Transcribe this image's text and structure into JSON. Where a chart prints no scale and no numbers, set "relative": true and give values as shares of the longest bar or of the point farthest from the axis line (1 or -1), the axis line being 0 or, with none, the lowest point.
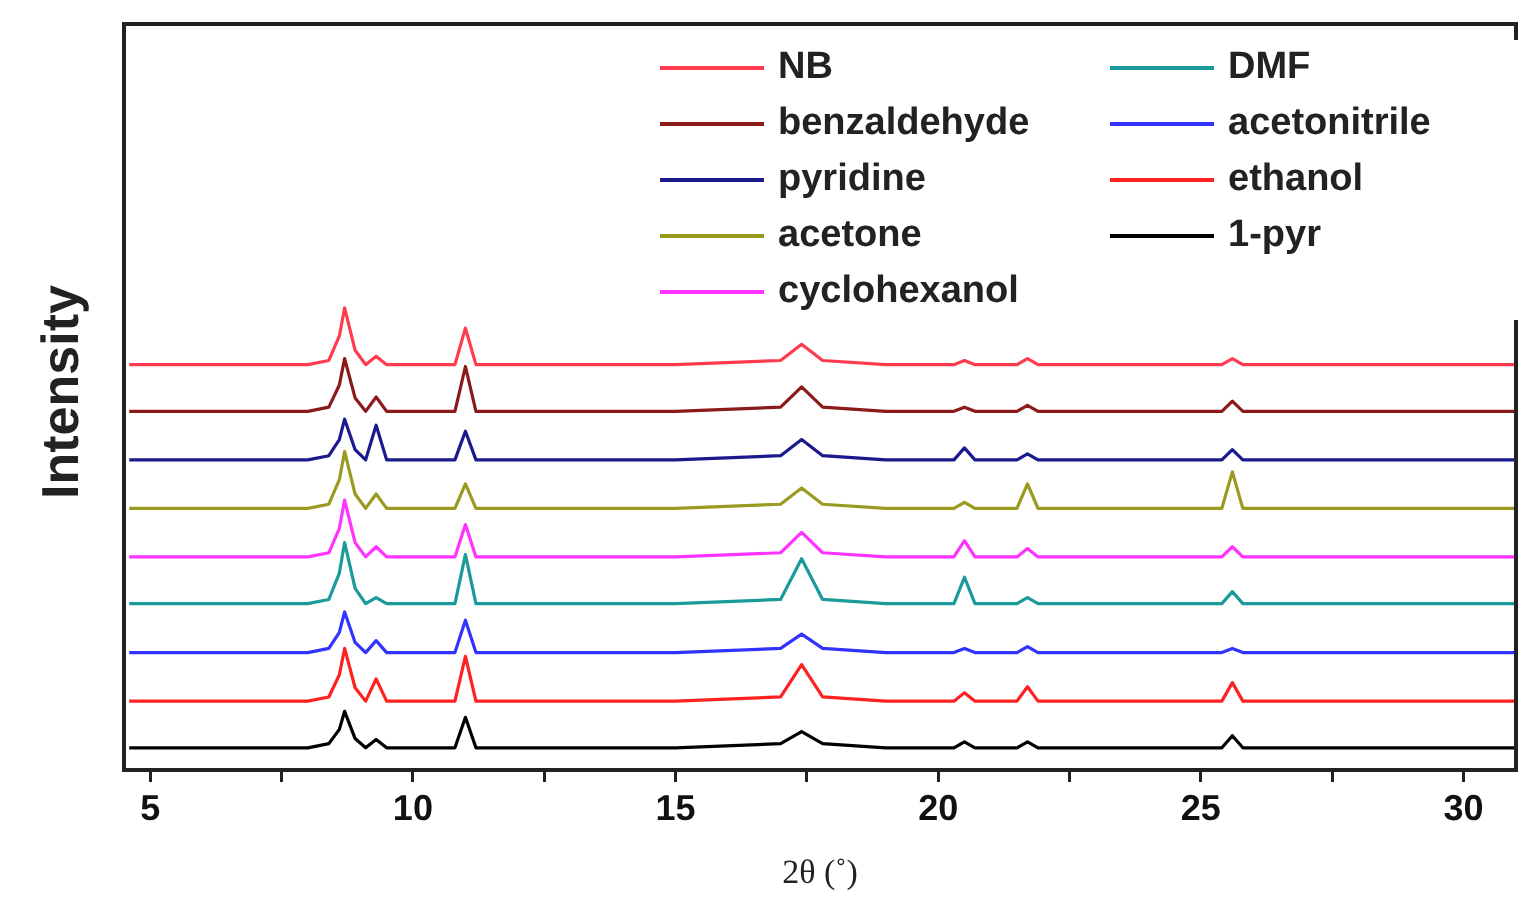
{
  "chart_data": {
    "type": "line",
    "relative": true,
    "xlabel": "2θ (˚)",
    "ylabel": "Intensity",
    "xlim": [
      4.5,
      31
    ],
    "xticks": [
      5,
      {
        "value": 7.5,
        "label": null
      },
      10,
      {
        "value": 12.5,
        "label": null
      },
      15,
      {
        "value": 17.5,
        "label": null
      },
      20,
      {
        "value": 22.5,
        "label": null
      },
      25,
      {
        "value": 27.5,
        "label": null
      },
      30
    ],
    "grid": false,
    "legend": "top right",
    "marker": "none",
    "line_style": "solid",
    "x": [
      4.6,
      6,
      7,
      8,
      8.4,
      8.6,
      8.7,
      8.9,
      9.1,
      9.3,
      9.5,
      10.8,
      11.0,
      11.2,
      13,
      15,
      17.0,
      17.4,
      17.8,
      19,
      20.3,
      20.5,
      20.7,
      21.5,
      21.7,
      21.9,
      23,
      25.4,
      25.6,
      25.8,
      28,
      31
    ],
    "series": [
      {
        "name": "NB",
        "color": "#ff3b4e",
        "values": [
          0.877,
          0.877,
          0.877,
          0.877,
          0.886,
          0.939,
          1.0,
          0.908,
          0.877,
          0.895,
          0.877,
          0.877,
          0.956,
          0.877,
          0.877,
          0.877,
          0.886,
          0.921,
          0.886,
          0.877,
          0.877,
          0.886,
          0.877,
          0.877,
          0.89,
          0.877,
          0.877,
          0.877,
          0.89,
          0.877,
          0.877,
          0.877
        ]
      },
      {
        "name": "benzaldehyde",
        "color": "#8b1a1a",
        "values": [
          0.776,
          0.776,
          0.776,
          0.776,
          0.785,
          0.833,
          0.89,
          0.805,
          0.776,
          0.807,
          0.776,
          0.776,
          0.873,
          0.776,
          0.776,
          0.776,
          0.785,
          0.829,
          0.785,
          0.776,
          0.776,
          0.785,
          0.776,
          0.776,
          0.789,
          0.776,
          0.776,
          0.776,
          0.798,
          0.776,
          0.776,
          0.776
        ]
      },
      {
        "name": "pyridine",
        "color": "#1a1a8c",
        "values": [
          0.671,
          0.671,
          0.671,
          0.671,
          0.68,
          0.715,
          0.759,
          0.693,
          0.671,
          0.746,
          0.671,
          0.671,
          0.733,
          0.671,
          0.671,
          0.671,
          0.68,
          0.715,
          0.68,
          0.671,
          0.671,
          0.697,
          0.671,
          0.671,
          0.684,
          0.671,
          0.671,
          0.671,
          0.693,
          0.671,
          0.671,
          0.671
        ]
      },
      {
        "name": "acetone",
        "color": "#9a9a20",
        "values": [
          0.566,
          0.566,
          0.566,
          0.566,
          0.575,
          0.628,
          0.689,
          0.597,
          0.566,
          0.597,
          0.566,
          0.566,
          0.619,
          0.566,
          0.566,
          0.566,
          0.575,
          0.61,
          0.575,
          0.566,
          0.566,
          0.579,
          0.566,
          0.566,
          0.619,
          0.566,
          0.566,
          0.566,
          0.645,
          0.566,
          0.566,
          0.566
        ]
      },
      {
        "name": "cyclohexanol",
        "color": "#ff33ff",
        "values": [
          0.461,
          0.461,
          0.461,
          0.461,
          0.47,
          0.523,
          0.584,
          0.492,
          0.461,
          0.483,
          0.461,
          0.461,
          0.531,
          0.461,
          0.461,
          0.461,
          0.47,
          0.514,
          0.47,
          0.461,
          0.461,
          0.496,
          0.461,
          0.461,
          0.479,
          0.461,
          0.461,
          0.461,
          0.483,
          0.461,
          0.461,
          0.461
        ]
      },
      {
        "name": "DMF",
        "color": "#1a9a9a",
        "values": [
          0.36,
          0.36,
          0.36,
          0.36,
          0.369,
          0.426,
          0.492,
          0.393,
          0.36,
          0.373,
          0.36,
          0.36,
          0.466,
          0.36,
          0.36,
          0.36,
          0.369,
          0.457,
          0.369,
          0.36,
          0.36,
          0.417,
          0.36,
          0.36,
          0.373,
          0.36,
          0.36,
          0.36,
          0.386,
          0.36,
          0.36,
          0.36
        ]
      },
      {
        "name": "acetonitrile",
        "color": "#3333ff",
        "values": [
          0.254,
          0.254,
          0.254,
          0.254,
          0.263,
          0.298,
          0.342,
          0.276,
          0.254,
          0.28,
          0.254,
          0.254,
          0.324,
          0.254,
          0.254,
          0.254,
          0.263,
          0.294,
          0.263,
          0.254,
          0.254,
          0.263,
          0.254,
          0.254,
          0.267,
          0.254,
          0.254,
          0.254,
          0.263,
          0.254,
          0.254,
          0.254
        ]
      },
      {
        "name": "ethanol",
        "color": "#ff2020",
        "values": [
          0.149,
          0.149,
          0.149,
          0.149,
          0.158,
          0.206,
          0.263,
          0.178,
          0.149,
          0.197,
          0.149,
          0.149,
          0.246,
          0.149,
          0.149,
          0.149,
          0.158,
          0.228,
          0.158,
          0.149,
          0.149,
          0.167,
          0.149,
          0.149,
          0.18,
          0.149,
          0.149,
          0.149,
          0.189,
          0.149,
          0.149,
          0.149
        ]
      },
      {
        "name": "1-pyr",
        "color": "#000000",
        "values": [
          0.048,
          0.048,
          0.048,
          0.048,
          0.057,
          0.088,
          0.127,
          0.068,
          0.048,
          0.066,
          0.048,
          0.048,
          0.114,
          0.048,
          0.048,
          0.048,
          0.057,
          0.083,
          0.057,
          0.048,
          0.048,
          0.061,
          0.048,
          0.048,
          0.061,
          0.048,
          0.048,
          0.048,
          0.074,
          0.048,
          0.048,
          0.048
        ]
      }
    ]
  }
}
